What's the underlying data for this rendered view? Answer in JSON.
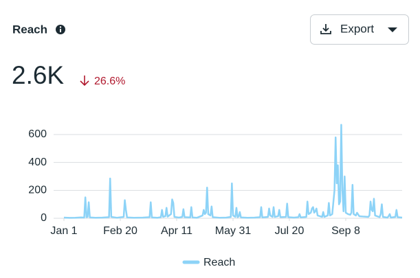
{
  "header": {
    "title": "Reach",
    "button": "Export"
  },
  "metric": {
    "value": "2.6K",
    "change": "26.6%"
  },
  "chart_data": {
    "type": "line",
    "x": [
      0,
      5,
      10,
      15,
      18,
      19,
      20,
      21,
      22,
      23,
      28,
      34,
      40,
      41,
      42,
      47,
      53,
      54,
      55,
      56,
      62,
      70,
      76,
      77,
      78,
      83,
      86,
      87,
      88,
      90,
      91,
      92,
      95,
      96,
      97,
      98,
      102,
      105,
      106,
      107,
      112,
      113,
      114,
      118,
      123,
      124,
      125,
      126,
      127,
      128,
      130,
      131,
      132,
      138,
      144,
      148,
      149,
      150,
      152,
      153,
      154,
      155,
      156,
      157,
      163,
      169,
      174,
      175,
      176,
      181,
      182,
      183,
      185,
      186,
      187,
      190,
      191,
      192,
      197,
      198,
      199,
      204,
      208,
      209,
      210,
      215,
      216,
      217,
      219,
      220,
      221,
      222,
      223,
      224,
      225,
      229,
      230,
      231,
      234,
      235,
      236,
      238,
      240,
      241,
      242,
      243,
      244,
      245,
      246,
      247,
      248,
      249,
      250,
      252,
      254,
      255,
      256,
      257,
      259,
      260,
      262,
      266,
      270,
      271,
      272,
      273,
      274,
      275,
      276,
      280,
      281,
      282,
      283,
      287,
      288,
      289,
      290,
      294,
      295,
      296,
      300
    ],
    "series": [
      {
        "name": "Reach",
        "color": "#8dd3f7",
        "values": [
          5,
          3,
          4,
          6,
          5,
          150,
          8,
          10,
          115,
          6,
          4,
          5,
          8,
          285,
          10,
          4,
          10,
          130,
          60,
          6,
          4,
          5,
          8,
          115,
          6,
          4,
          8,
          60,
          10,
          15,
          75,
          12,
          30,
          135,
          110,
          10,
          5,
          10,
          65,
          8,
          6,
          80,
          6,
          4,
          20,
          60,
          30,
          40,
          220,
          30,
          20,
          85,
          8,
          4,
          5,
          10,
          250,
          20,
          10,
          75,
          8,
          12,
          45,
          6,
          4,
          5,
          8,
          80,
          6,
          10,
          70,
          20,
          10,
          80,
          10,
          15,
          60,
          8,
          10,
          105,
          8,
          5,
          8,
          30,
          6,
          10,
          120,
          30,
          40,
          70,
          80,
          40,
          50,
          70,
          20,
          10,
          45,
          10,
          20,
          110,
          20,
          30,
          200,
          580,
          250,
          380,
          100,
          120,
          670,
          200,
          50,
          300,
          40,
          30,
          25,
          40,
          240,
          30,
          20,
          40,
          15,
          12,
          10,
          20,
          120,
          60,
          50,
          140,
          20,
          8,
          30,
          100,
          10,
          5,
          15,
          30,
          5,
          10,
          60,
          8,
          5
        ]
      }
    ],
    "xlim": [
      0,
      300
    ],
    "xticks": [
      {
        "value": 0,
        "label": "Jan 1"
      },
      {
        "value": 50,
        "label": "Feb 20"
      },
      {
        "value": 100,
        "label": "Apr 11"
      },
      {
        "value": 150,
        "label": "May 31"
      },
      {
        "value": 200,
        "label": "Jul 20"
      },
      {
        "value": 250,
        "label": "Sep 8"
      }
    ],
    "ylim": [
      0,
      600
    ],
    "yticks": [
      0,
      200,
      400,
      600
    ],
    "grid": true,
    "legend": "bottom"
  }
}
